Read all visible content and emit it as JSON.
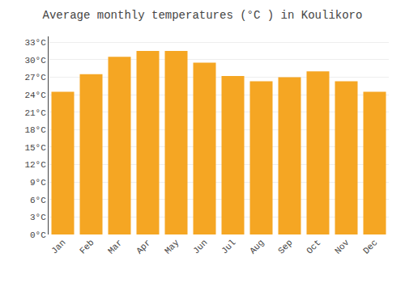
{
  "chart_data": {
    "type": "bar",
    "title": "Average monthly temperatures (°C ) in Koulikoro",
    "categories": [
      "Jan",
      "Feb",
      "Mar",
      "Apr",
      "May",
      "Jun",
      "Jul",
      "Aug",
      "Sep",
      "Oct",
      "Nov",
      "Dec"
    ],
    "values": [
      24.5,
      27.5,
      30.5,
      31.5,
      31.5,
      29.5,
      27.2,
      26.3,
      27.0,
      28.0,
      26.3,
      24.5
    ],
    "color": "#F5A623",
    "ylim": [
      0,
      34
    ],
    "yticks": [
      {
        "value": 0,
        "label": "0°C"
      },
      {
        "value": 3,
        "label": "3°C"
      },
      {
        "value": 6,
        "label": "6°C"
      },
      {
        "value": 9,
        "label": "9°C"
      },
      {
        "value": 12,
        "label": "12°C"
      },
      {
        "value": 15,
        "label": "15°C"
      },
      {
        "value": 18,
        "label": "18°C"
      },
      {
        "value": 21,
        "label": "21°C"
      },
      {
        "value": 24,
        "label": "24°C"
      },
      {
        "value": 27,
        "label": "27°C"
      },
      {
        "value": 30,
        "label": "30°C"
      },
      {
        "value": 33,
        "label": "33°C"
      }
    ],
    "grid": true
  }
}
